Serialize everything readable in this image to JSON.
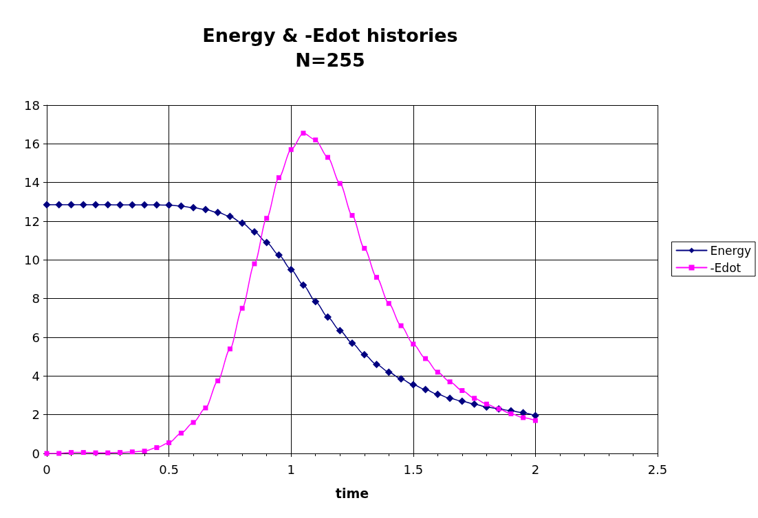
{
  "chart_data": {
    "type": "line",
    "title": "Energy & -Edot histories\nN=255",
    "xlabel": "time",
    "x": [
      0,
      0.05,
      0.1,
      0.15,
      0.2,
      0.25,
      0.3,
      0.35,
      0.4,
      0.45,
      0.5,
      0.55,
      0.6,
      0.65,
      0.7,
      0.75,
      0.8,
      0.85,
      0.9,
      0.95,
      1.0,
      1.05,
      1.1,
      1.15,
      1.2,
      1.25,
      1.3,
      1.35,
      1.4,
      1.45,
      1.5,
      1.55,
      1.6,
      1.65,
      1.7,
      1.75,
      1.8,
      1.85,
      1.9,
      1.95,
      2.0
    ],
    "series": [
      {
        "name": "Energy",
        "color": "#000080",
        "marker": "diamond",
        "values": [
          12.85,
          12.85,
          12.85,
          12.85,
          12.85,
          12.85,
          12.84,
          12.84,
          12.84,
          12.84,
          12.83,
          12.78,
          12.7,
          12.6,
          12.45,
          12.25,
          11.9,
          11.45,
          10.9,
          10.25,
          9.5,
          8.7,
          7.85,
          7.05,
          6.35,
          5.7,
          5.1,
          4.6,
          4.2,
          3.85,
          3.55,
          3.3,
          3.05,
          2.85,
          2.7,
          2.55,
          2.4,
          2.3,
          2.2,
          2.1,
          1.95
        ]
      },
      {
        "name": "-Edot",
        "color": "#ff00ff",
        "marker": "square",
        "values": [
          0,
          0,
          0.05,
          0.05,
          0.03,
          0.03,
          0.05,
          0.08,
          0.12,
          0.3,
          0.55,
          1.05,
          1.6,
          2.35,
          3.75,
          5.4,
          7.5,
          9.8,
          12.15,
          14.25,
          15.7,
          16.55,
          16.2,
          15.3,
          13.95,
          12.3,
          10.6,
          9.1,
          7.75,
          6.6,
          5.65,
          4.9,
          4.2,
          3.7,
          3.25,
          2.85,
          2.55,
          2.3,
          2.05,
          1.85,
          1.7
        ]
      }
    ],
    "xlim": [
      0,
      2.5
    ],
    "xticks": [
      0,
      0.5,
      1,
      1.5,
      2,
      2.5
    ],
    "ylim": [
      0,
      18
    ],
    "yticks": [
      0,
      2,
      4,
      6,
      8,
      10,
      12,
      14,
      16,
      18
    ],
    "grid": true,
    "legend": "right"
  }
}
